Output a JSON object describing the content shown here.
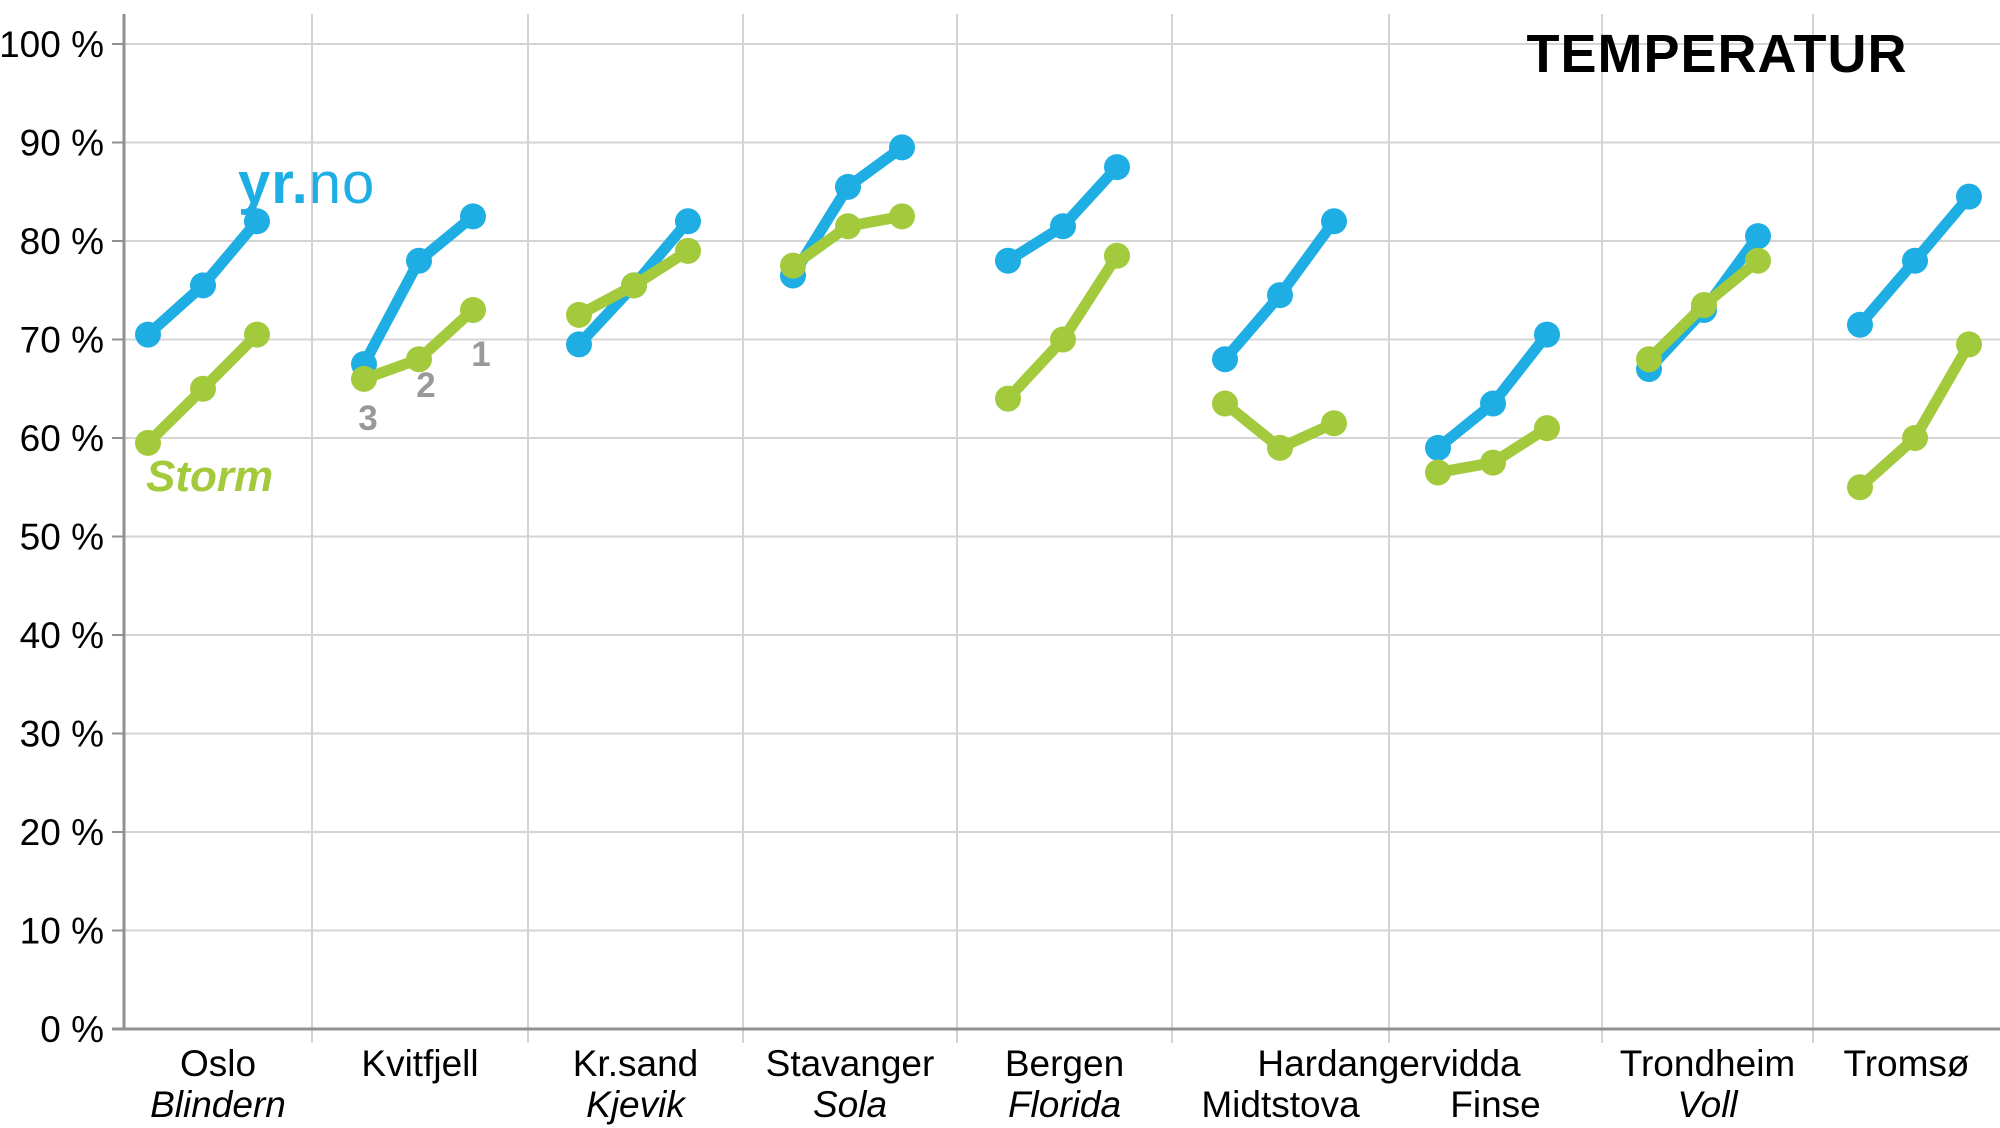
{
  "title": "TEMPERATUR",
  "series_labels": {
    "yr": "yr.no",
    "storm": "Storm"
  },
  "colors": {
    "yr": "#1eaee4",
    "storm": "#a3c93c",
    "gridline": "#d4d4d4",
    "axis": "#919191",
    "day_label": "#999999",
    "text": "#000000"
  },
  "y_axis": {
    "min": 0,
    "max": 100,
    "step": 10,
    "tick_suffix": " %",
    "tick_labels": [
      "0 %",
      "10 %",
      "20 %",
      "30 %",
      "40 %",
      "50 %",
      "60 %",
      "70 %",
      "80 %",
      "90 %",
      "100 %"
    ]
  },
  "day_labels": [
    "3",
    "2",
    "1"
  ],
  "chart_data": {
    "type": "line",
    "title": "TEMPERATUR",
    "ylabel": "%",
    "ylim": [
      0,
      100
    ],
    "grid": true,
    "x_within_group": [
      "3",
      "2",
      "1"
    ],
    "series": [
      {
        "name": "yr.no",
        "color": "#1eaee4"
      },
      {
        "name": "Storm",
        "color": "#a3c93c"
      }
    ],
    "shared_group_label": {
      "text": "Hardangervidda",
      "spans_groups": [
        5,
        6
      ]
    },
    "groups": [
      {
        "label": "Oslo",
        "sublabel": "Blindern",
        "sublabel_italic": true,
        "yr": [
          70.5,
          75.5,
          82
        ],
        "storm": [
          59.5,
          65,
          70.5
        ]
      },
      {
        "label": "Kvitfjell",
        "sublabel": "",
        "sublabel_italic": false,
        "yr": [
          67.5,
          78,
          82.5
        ],
        "storm": [
          66,
          68,
          73
        ]
      },
      {
        "label": "Kr.sand",
        "sublabel": "Kjevik",
        "sublabel_italic": true,
        "yr": [
          69.5,
          75.5,
          82
        ],
        "storm": [
          72.5,
          75.5,
          79
        ]
      },
      {
        "label": "Stavanger",
        "sublabel": "Sola",
        "sublabel_italic": true,
        "yr": [
          76.5,
          85.5,
          89.5
        ],
        "storm": [
          77.5,
          81.5,
          82.5
        ]
      },
      {
        "label": "Bergen",
        "sublabel": "Florida",
        "sublabel_italic": true,
        "yr": [
          78,
          81.5,
          87.5
        ],
        "storm": [
          64,
          70,
          78.5
        ]
      },
      {
        "label": "",
        "sublabel": "Midtstova",
        "sublabel_italic": false,
        "yr": [
          68,
          74.5,
          82
        ],
        "storm": [
          63.5,
          59,
          61.5
        ]
      },
      {
        "label": "",
        "sublabel": "Finse",
        "sublabel_italic": false,
        "yr": [
          59,
          63.5,
          70.5
        ],
        "storm": [
          56.5,
          57.5,
          61
        ]
      },
      {
        "label": "Trondheim",
        "sublabel": "Voll",
        "sublabel_italic": true,
        "yr": [
          67,
          73,
          80.5
        ],
        "storm": [
          68,
          73.5,
          78
        ]
      },
      {
        "label": "Tromsø",
        "sublabel": "",
        "sublabel_italic": false,
        "yr": [
          71.5,
          78,
          84.5
        ],
        "storm": [
          55,
          60,
          69.5
        ]
      }
    ]
  }
}
